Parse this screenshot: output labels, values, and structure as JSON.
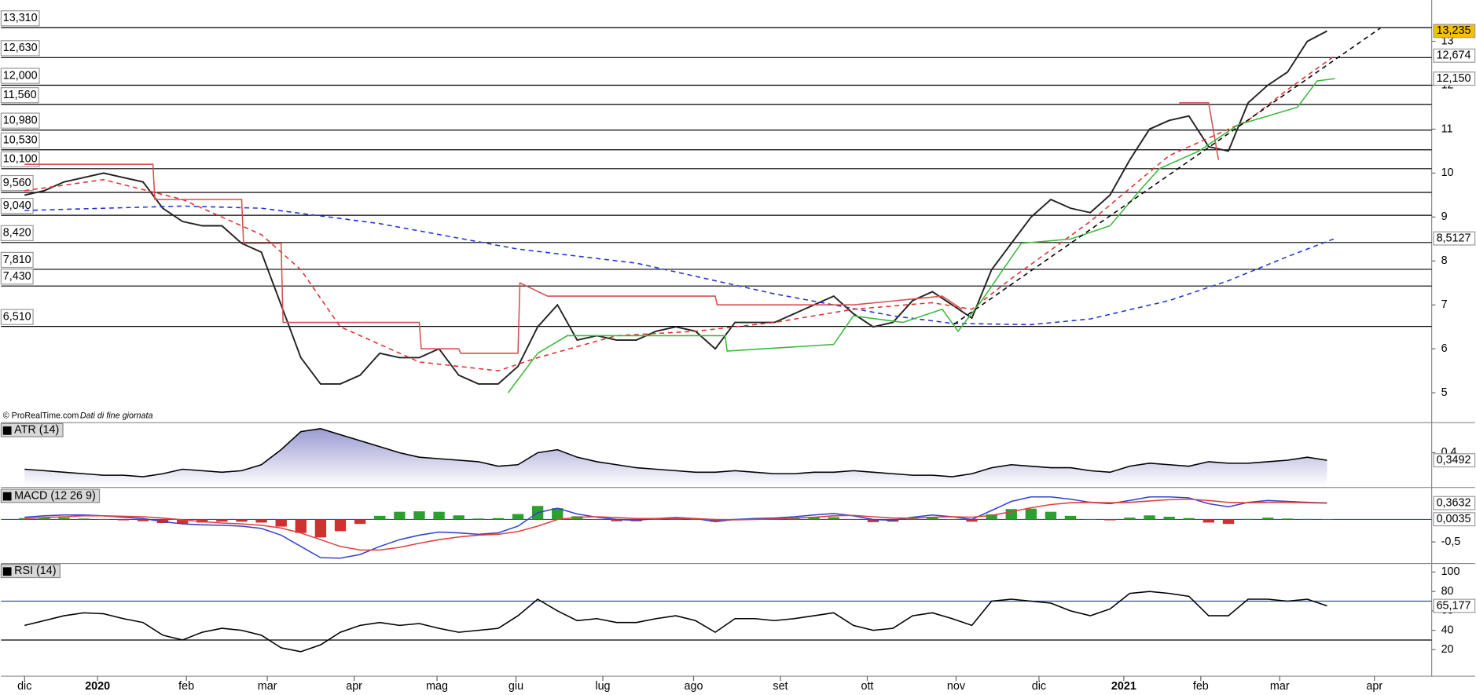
{
  "chart_data": [
    {
      "type": "line",
      "source": "© ProRealTime.com",
      "note": "Dati di fine giornata",
      "x": [
        0,
        1,
        2,
        3,
        4,
        5,
        6,
        7,
        8,
        9,
        10,
        11,
        12,
        13,
        14,
        15,
        16,
        17,
        18,
        19,
        20,
        21,
        22,
        23,
        24,
        25,
        26,
        27,
        28,
        29,
        30,
        31,
        32,
        33,
        34,
        35,
        36,
        37,
        38,
        39,
        40,
        41,
        42,
        43,
        44,
        45,
        46,
        47,
        48,
        49,
        50,
        51,
        52,
        53,
        54,
        55,
        56,
        57,
        58,
        59,
        60,
        61,
        62,
        63,
        64,
        65,
        66
      ],
      "xlim": [
        -1.19,
        71.3
      ],
      "xticks": [
        {
          "value": 0,
          "label": "dic"
        },
        {
          "value": 3.7,
          "label": "2020"
        },
        {
          "value": 8.2,
          "label": "feb"
        },
        {
          "value": 12.3,
          "label": "mar"
        },
        {
          "value": 16.7,
          "label": "apr"
        },
        {
          "value": 20.9,
          "label": "mag"
        },
        {
          "value": 24.9,
          "label": "giu"
        },
        {
          "value": 29.3,
          "label": "lug"
        },
        {
          "value": 33.9,
          "label": "ago"
        },
        {
          "value": 38.3,
          "label": "set"
        },
        {
          "value": 42.7,
          "label": "ott"
        },
        {
          "value": 47.2,
          "label": "nov"
        },
        {
          "value": 51.4,
          "label": "dic"
        },
        {
          "value": 55.7,
          "label": "2021"
        },
        {
          "value": 59.6,
          "label": "feb"
        },
        {
          "value": 63.6,
          "label": "mar"
        },
        {
          "value": 68.4,
          "label": "apr"
        }
      ],
      "ylim": [
        4.32,
        13.94
      ],
      "yticks": [
        5,
        6,
        7,
        8,
        9,
        10,
        11,
        12,
        13
      ],
      "levels": [
        {
          "value": 13.31,
          "label": "13,310"
        },
        {
          "value": 12.63,
          "label": "12,630"
        },
        {
          "value": 12.0,
          "label": "12,000"
        },
        {
          "value": 11.56,
          "label": "11,560"
        },
        {
          "value": 10.98,
          "label": "10,980"
        },
        {
          "value": 10.53,
          "label": "10,530"
        },
        {
          "value": 10.1,
          "label": "10,100"
        },
        {
          "value": 9.56,
          "label": "9,560"
        },
        {
          "value": 9.04,
          "label": "9,040"
        },
        {
          "value": 8.42,
          "label": "8,420"
        },
        {
          "value": 7.81,
          "label": "7,810"
        },
        {
          "value": 7.43,
          "label": "7,430"
        },
        {
          "value": 6.51,
          "label": "6,510"
        }
      ],
      "series": [
        {
          "color": "#222222",
          "values": [
            9.5,
            9.6,
            9.8,
            9.9,
            10.0,
            9.9,
            9.8,
            9.2,
            8.9,
            8.8,
            8.8,
            8.4,
            8.2,
            7.0,
            5.8,
            5.2,
            5.2,
            5.4,
            5.9,
            5.8,
            5.8,
            6.0,
            5.4,
            5.2,
            5.2,
            5.6,
            6.5,
            7.0,
            6.2,
            6.3,
            6.2,
            6.2,
            6.4,
            6.5,
            6.4,
            6.0,
            6.6,
            6.6,
            6.6,
            6.8,
            7.0,
            7.2,
            6.8,
            6.5,
            6.6,
            7.1,
            7.3,
            7.0,
            6.7,
            7.8,
            8.4,
            9.0,
            9.4,
            9.2,
            9.1,
            9.5,
            10.3,
            11.0,
            11.2,
            11.3,
            10.6,
            10.5,
            11.6,
            12.0,
            12.3,
            13.0,
            13.235
          ]
        },
        {
          "color": "#2233cc",
          "dash": true,
          "x": [
            0,
            8,
            12,
            18,
            25,
            31,
            38,
            44,
            47,
            51,
            54,
            58,
            61,
            64,
            66.4
          ],
          "values": [
            9.15,
            9.25,
            9.2,
            8.85,
            8.27,
            7.95,
            7.25,
            6.75,
            6.58,
            6.55,
            6.68,
            7.1,
            7.55,
            8.1,
            8.5127
          ]
        },
        {
          "color": "#e03030",
          "dash": true,
          "x": [
            0,
            4,
            8,
            12,
            14,
            16,
            20,
            24,
            26,
            30,
            34,
            38,
            42,
            46,
            48,
            50,
            54,
            58,
            62,
            64,
            66.4
          ],
          "values": [
            9.6,
            9.85,
            9.4,
            8.6,
            7.8,
            6.5,
            5.7,
            5.5,
            5.8,
            6.3,
            6.4,
            6.6,
            6.9,
            7.05,
            6.9,
            7.6,
            8.9,
            10.4,
            11.2,
            11.9,
            12.674
          ]
        },
        {
          "color": "#d65050",
          "x": [
            0,
            6.5,
            6.6,
            11,
            11.1,
            13,
            13.1,
            20,
            20.1,
            22,
            22.1,
            25,
            25.1,
            26.5,
            35,
            35.1,
            42,
            46.5,
            47.5,
            52,
            58.5,
            60,
            60.5
          ],
          "values": [
            10.2,
            10.2,
            9.4,
            9.4,
            8.4,
            8.4,
            6.6,
            6.6,
            6.0,
            6.0,
            5.9,
            5.9,
            7.5,
            7.2,
            7.2,
            7.0,
            7.0,
            7.2,
            6.9,
            null,
            11.6,
            11.6,
            10.3
          ]
        },
        {
          "color": "#3cb83c",
          "x": [
            24.5,
            26,
            27.5,
            35.5,
            35.6,
            41,
            42,
            44.5,
            46.5,
            47.3,
            48.5,
            50.5,
            53,
            55,
            56.5,
            57.5,
            59.5,
            61.5,
            63,
            64.5,
            65.5,
            66.4
          ],
          "values": [
            5.0,
            5.9,
            6.3,
            6.3,
            5.95,
            6.1,
            6.75,
            6.6,
            6.9,
            6.4,
            7.1,
            8.4,
            8.5,
            8.8,
            9.6,
            10.1,
            10.5,
            11.1,
            11.3,
            11.5,
            12.1,
            12.15
          ]
        },
        {
          "color": "#000000",
          "dash": true,
          "x": [
            47.1,
            68.7
          ],
          "values": [
            6.56,
            13.3
          ]
        }
      ],
      "tags": [
        {
          "value": 13.235,
          "label": "13,235",
          "bg": "#f2c200",
          "color": "#000000"
        },
        {
          "value": 12.674,
          "label": "12,674",
          "bg": "#ffffff",
          "color": "#d03030"
        },
        {
          "value": 12.15,
          "label": "12,150",
          "bg": "#ffffff",
          "color": "#30a030"
        },
        {
          "value": 8.5127,
          "label": "8,5127",
          "bg": "#ffffff",
          "color": "#2233cc"
        }
      ]
    },
    {
      "type": "area",
      "title": "ATR (14)",
      "ylim": [
        0.175,
        0.6
      ],
      "yticks": [
        {
          "value": 0.4,
          "label": "0,4"
        }
      ],
      "series": [
        {
          "color": "#000000",
          "fill": "#a8a8d8",
          "values": [
            0.29,
            0.28,
            0.27,
            0.26,
            0.25,
            0.25,
            0.24,
            0.26,
            0.29,
            0.28,
            0.27,
            0.28,
            0.32,
            0.42,
            0.54,
            0.56,
            0.52,
            0.48,
            0.44,
            0.4,
            0.37,
            0.36,
            0.35,
            0.34,
            0.31,
            0.32,
            0.4,
            0.42,
            0.37,
            0.34,
            0.32,
            0.3,
            0.29,
            0.28,
            0.27,
            0.27,
            0.28,
            0.27,
            0.26,
            0.26,
            0.27,
            0.27,
            0.28,
            0.27,
            0.26,
            0.25,
            0.25,
            0.24,
            0.26,
            0.3,
            0.32,
            0.31,
            0.3,
            0.3,
            0.28,
            0.27,
            0.31,
            0.33,
            0.32,
            0.31,
            0.34,
            0.33,
            0.33,
            0.34,
            0.35,
            0.37,
            0.3492
          ]
        }
      ],
      "tags": [
        {
          "value": 0.3492,
          "label": "0,3492",
          "bg": "#ffffff",
          "color": "#000000"
        }
      ]
    },
    {
      "type": "line",
      "title": "MACD (12 26 9)",
      "ylim": [
        -0.98,
        0.69
      ],
      "yticks": [
        {
          "value": -0.5,
          "label": "-0,5"
        }
      ],
      "hlines": [
        {
          "value": 0,
          "color": "#3344cc"
        }
      ],
      "series": [
        {
          "type": "bar",
          "color": "#2ca02c",
          "negative_color": "#d03030",
          "values": [
            0.03,
            0.04,
            0.04,
            0.02,
            0.0,
            -0.02,
            -0.04,
            -0.08,
            -0.09,
            -0.07,
            -0.05,
            -0.05,
            -0.07,
            -0.16,
            -0.3,
            -0.4,
            -0.26,
            -0.1,
            0.08,
            0.17,
            0.18,
            0.17,
            0.09,
            0.02,
            0.03,
            0.12,
            0.3,
            0.25,
            0.07,
            -0.01,
            -0.04,
            -0.04,
            0.0,
            0.02,
            0.0,
            -0.05,
            0.01,
            0.02,
            0.02,
            0.03,
            0.05,
            0.05,
            -0.01,
            -0.06,
            -0.05,
            0.02,
            0.05,
            0.0,
            -0.05,
            0.11,
            0.23,
            0.24,
            0.17,
            0.08,
            0.0,
            -0.02,
            0.04,
            0.09,
            0.06,
            0.03,
            -0.07,
            -0.1,
            0.01,
            0.04,
            0.02,
            0.01,
            0.0035
          ]
        },
        {
          "color": "#3344cc",
          "values": [
            0.05,
            0.08,
            0.1,
            0.1,
            0.08,
            0.05,
            0.02,
            -0.05,
            -0.1,
            -0.12,
            -0.13,
            -0.15,
            -0.2,
            -0.35,
            -0.6,
            -0.85,
            -0.86,
            -0.78,
            -0.6,
            -0.45,
            -0.35,
            -0.28,
            -0.3,
            -0.33,
            -0.3,
            -0.15,
            0.15,
            0.25,
            0.12,
            0.05,
            0.0,
            -0.02,
            0.02,
            0.04,
            0.02,
            -0.05,
            0.0,
            0.02,
            0.03,
            0.06,
            0.1,
            0.13,
            0.08,
            0.0,
            -0.02,
            0.05,
            0.1,
            0.06,
            0.0,
            0.2,
            0.4,
            0.5,
            0.5,
            0.45,
            0.38,
            0.35,
            0.42,
            0.5,
            0.5,
            0.48,
            0.35,
            0.28,
            0.38,
            0.42,
            0.4,
            0.38,
            0.3667
          ]
        },
        {
          "color": "#e04040",
          "values": [
            0.02,
            0.04,
            0.06,
            0.08,
            0.08,
            0.07,
            0.06,
            0.03,
            -0.01,
            -0.05,
            -0.08,
            -0.1,
            -0.13,
            -0.19,
            -0.3,
            -0.45,
            -0.6,
            -0.68,
            -0.68,
            -0.62,
            -0.53,
            -0.45,
            -0.39,
            -0.35,
            -0.33,
            -0.27,
            -0.15,
            0.0,
            0.05,
            0.06,
            0.04,
            0.02,
            0.02,
            0.02,
            0.02,
            0.0,
            -0.01,
            0.0,
            0.01,
            0.03,
            0.05,
            0.08,
            0.09,
            0.06,
            0.03,
            0.03,
            0.05,
            0.06,
            0.05,
            0.09,
            0.17,
            0.26,
            0.33,
            0.37,
            0.38,
            0.37,
            0.38,
            0.41,
            0.44,
            0.45,
            0.42,
            0.38,
            0.37,
            0.38,
            0.38,
            0.37,
            0.3632
          ]
        }
      ],
      "tags": [
        {
          "value": 0.3632,
          "label": "0,3632",
          "bg": "#ffffff",
          "color": "#d03030"
        },
        {
          "value": 0.0035,
          "label": "0,0035",
          "bg": "#ffffff",
          "color": "#30a030"
        }
      ]
    },
    {
      "type": "line",
      "title": "RSI (14)",
      "ylim": [
        -7.3,
        108.8
      ],
      "yticks": [
        20,
        40,
        60,
        80,
        100
      ],
      "hlines": [
        {
          "value": 70,
          "color": "#3344cc"
        },
        {
          "value": 30,
          "color": "#000000"
        }
      ],
      "series": [
        {
          "color": "#000000",
          "values": [
            45,
            50,
            55,
            58,
            57,
            52,
            48,
            35,
            30,
            38,
            42,
            40,
            35,
            22,
            18,
            25,
            38,
            45,
            48,
            45,
            47,
            42,
            38,
            40,
            42,
            55,
            72,
            60,
            50,
            52,
            48,
            48,
            52,
            55,
            50,
            38,
            52,
            52,
            50,
            52,
            55,
            58,
            45,
            40,
            42,
            55,
            58,
            52,
            45,
            70,
            72,
            70,
            68,
            60,
            55,
            62,
            78,
            80,
            78,
            75,
            55,
            55,
            72,
            72,
            70,
            72,
            65.177
          ]
        }
      ],
      "tags": [
        {
          "value": 65.177,
          "label": "65,177",
          "bg": "#ffffff",
          "color": "#000000"
        }
      ]
    }
  ]
}
